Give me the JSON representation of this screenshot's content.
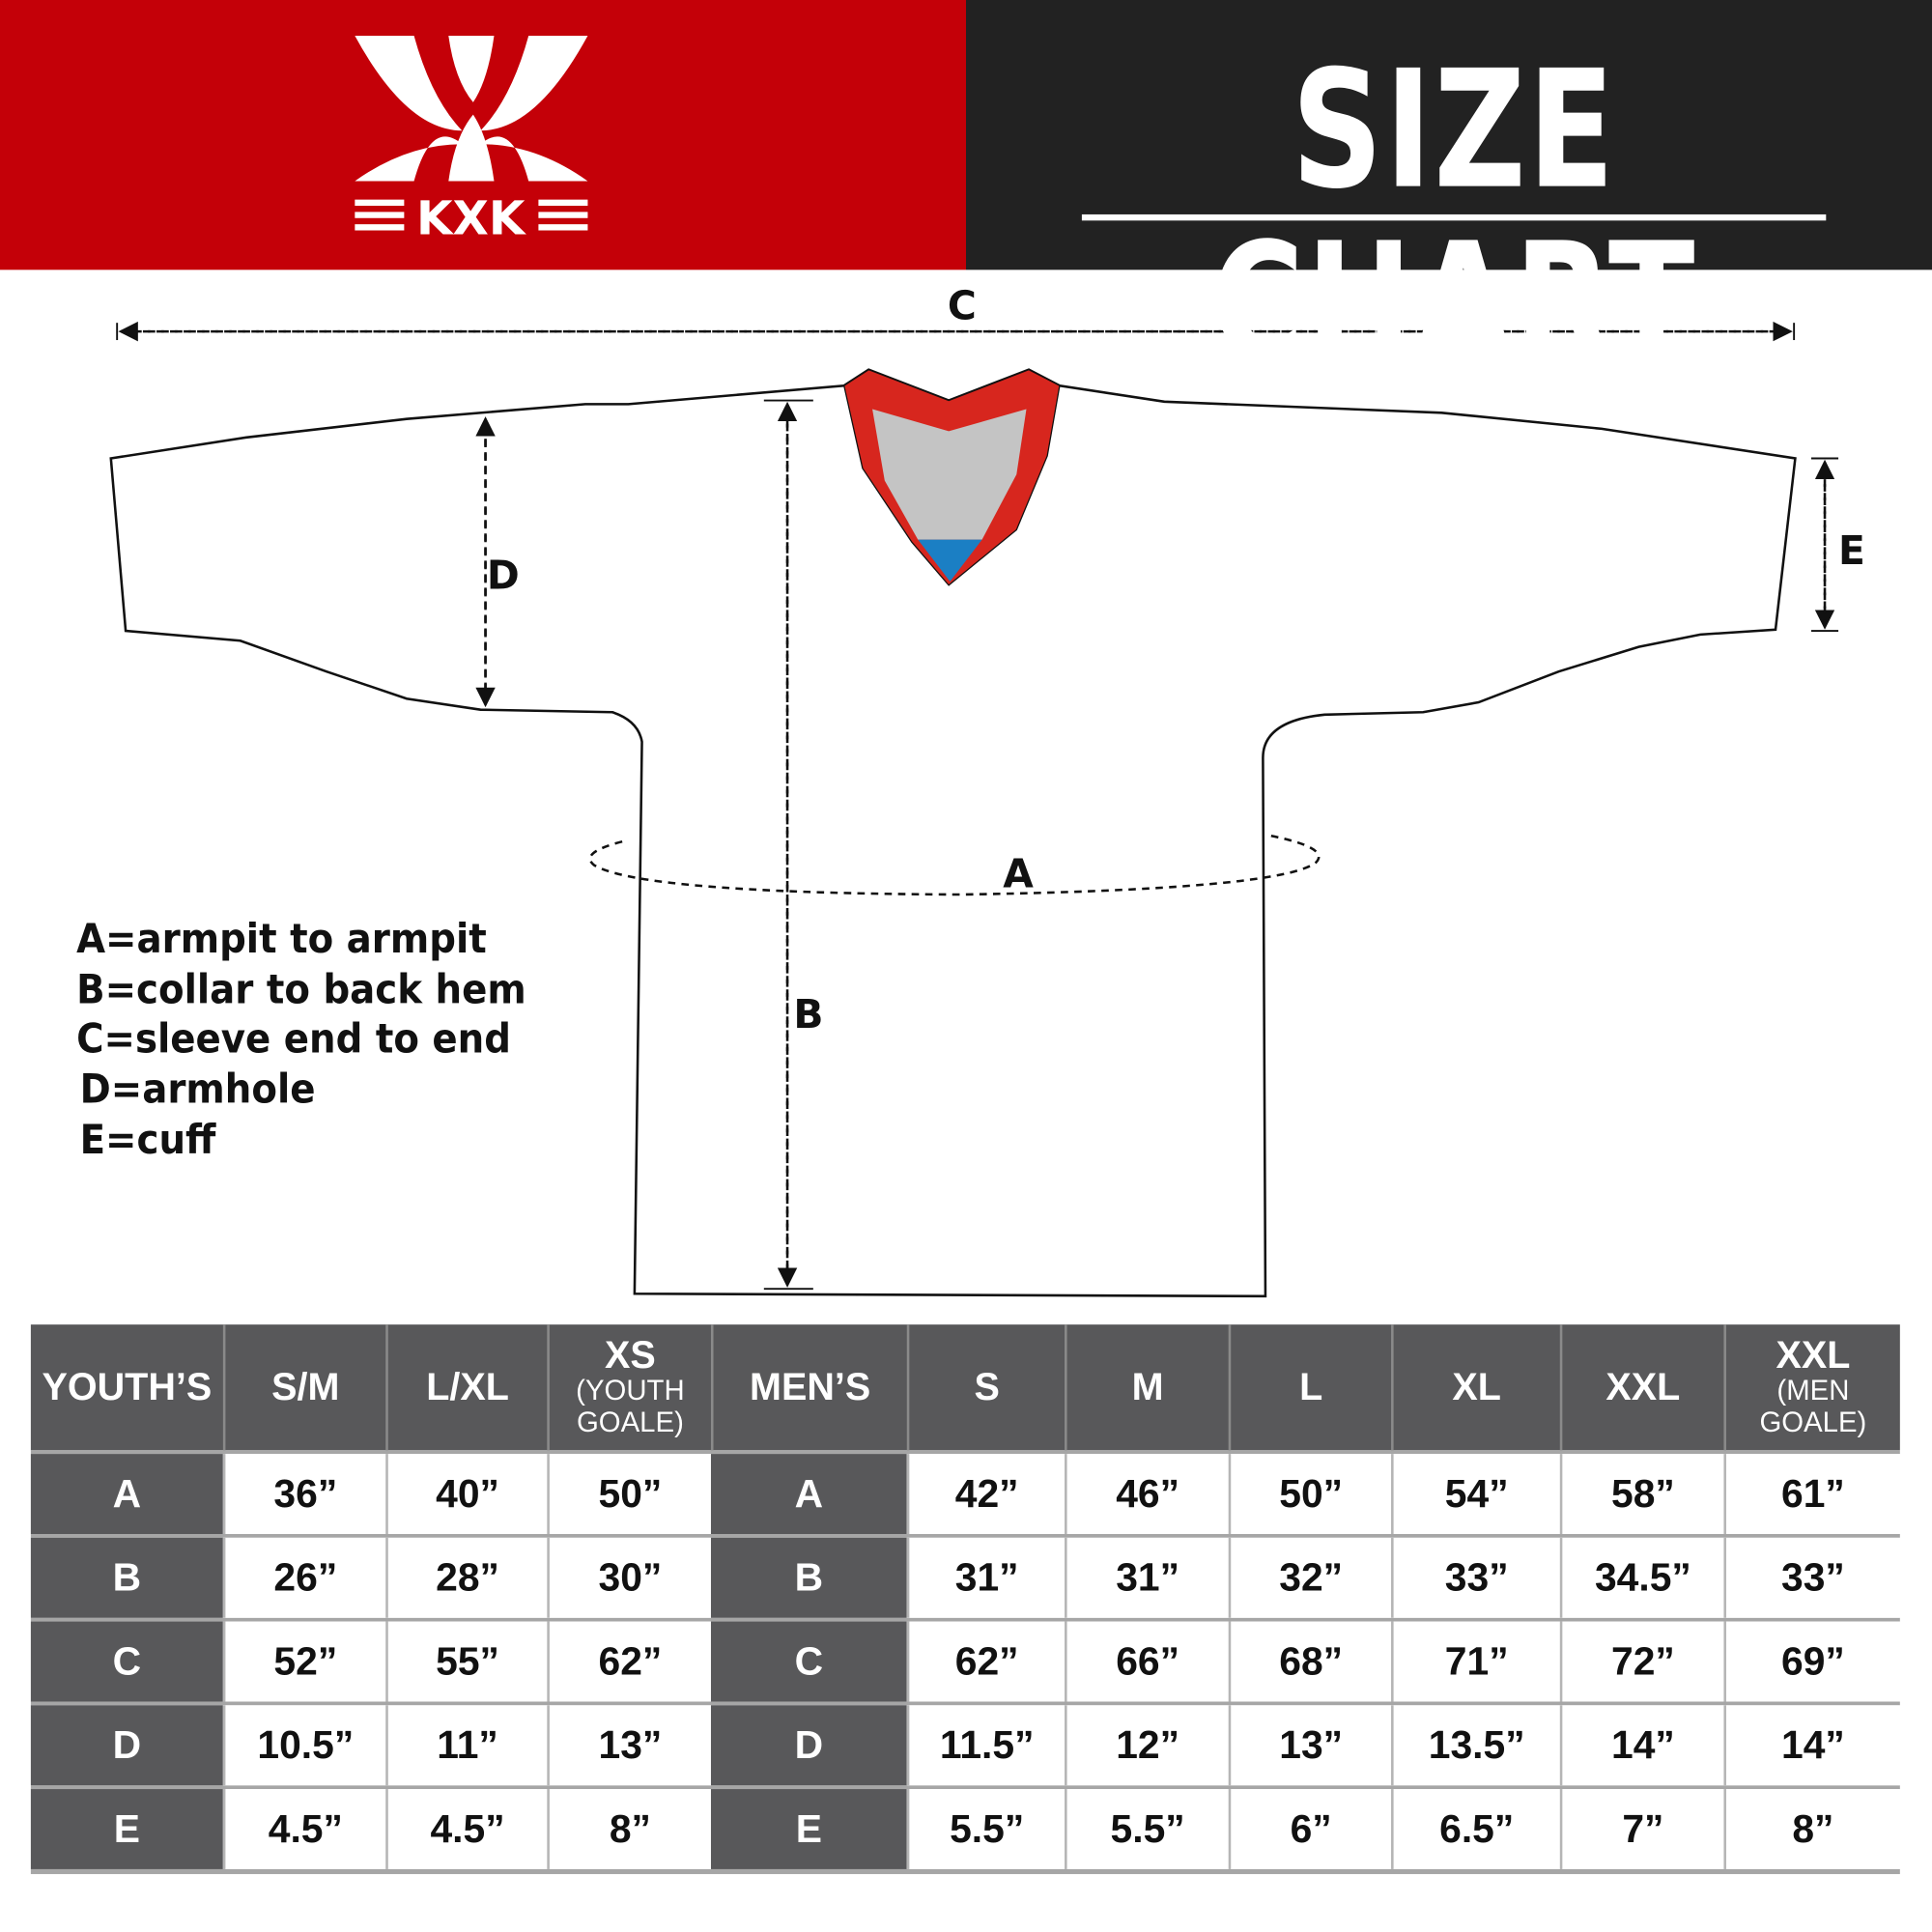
{
  "brand": {
    "logo_text": "KXK",
    "colors": {
      "red": "#c40008",
      "dark": "#222222",
      "collar_red": "#d7261e",
      "collar_gray": "#c4c4c4",
      "collar_blue": "#1b7fc4",
      "table_header": "#58585a"
    }
  },
  "header": {
    "title": "SIZE CHART"
  },
  "diagram": {
    "labels": {
      "a": "A",
      "b": "B",
      "c": "C",
      "d": "D",
      "e": "E"
    }
  },
  "legend": [
    "A=armpit to armpit",
    "B=collar to back hem",
    "C=sleeve end to end",
    "D=armhole",
    "E=cuff"
  ],
  "table": {
    "youth_header": "YOUTH’S",
    "mens_header": "MEN’S",
    "youth_sizes": [
      {
        "main": "S/M"
      },
      {
        "main": "L/XL"
      },
      {
        "main": "XS",
        "sub": "(YOUTH GOALE)"
      }
    ],
    "mens_sizes": [
      {
        "main": "S"
      },
      {
        "main": "M"
      },
      {
        "main": "L"
      },
      {
        "main": "XL"
      },
      {
        "main": "XXL"
      },
      {
        "main": "XXL",
        "sub": "(MEN GOALE)"
      }
    ],
    "rows": [
      {
        "label": "A",
        "youth": [
          "36”",
          "40”",
          "50”"
        ],
        "mens": [
          "42”",
          "46”",
          "50”",
          "54”",
          "58”",
          "61”"
        ]
      },
      {
        "label": "B",
        "youth": [
          "26”",
          "28”",
          "30”"
        ],
        "mens": [
          "31”",
          "31”",
          "32”",
          "33”",
          "34.5”",
          "33”"
        ]
      },
      {
        "label": "C",
        "youth": [
          "52”",
          "55”",
          "62”"
        ],
        "mens": [
          "62”",
          "66”",
          "68”",
          "71”",
          "72”",
          "69”"
        ]
      },
      {
        "label": "D",
        "youth": [
          "10.5”",
          "11”",
          "13”"
        ],
        "mens": [
          "11.5”",
          "12”",
          "13”",
          "13.5”",
          "14”",
          "14”"
        ]
      },
      {
        "label": "E",
        "youth": [
          "4.5”",
          "4.5”",
          "8”"
        ],
        "mens": [
          "5.5”",
          "5.5”",
          "6”",
          "6.5”",
          "7”",
          "8”"
        ]
      }
    ]
  }
}
